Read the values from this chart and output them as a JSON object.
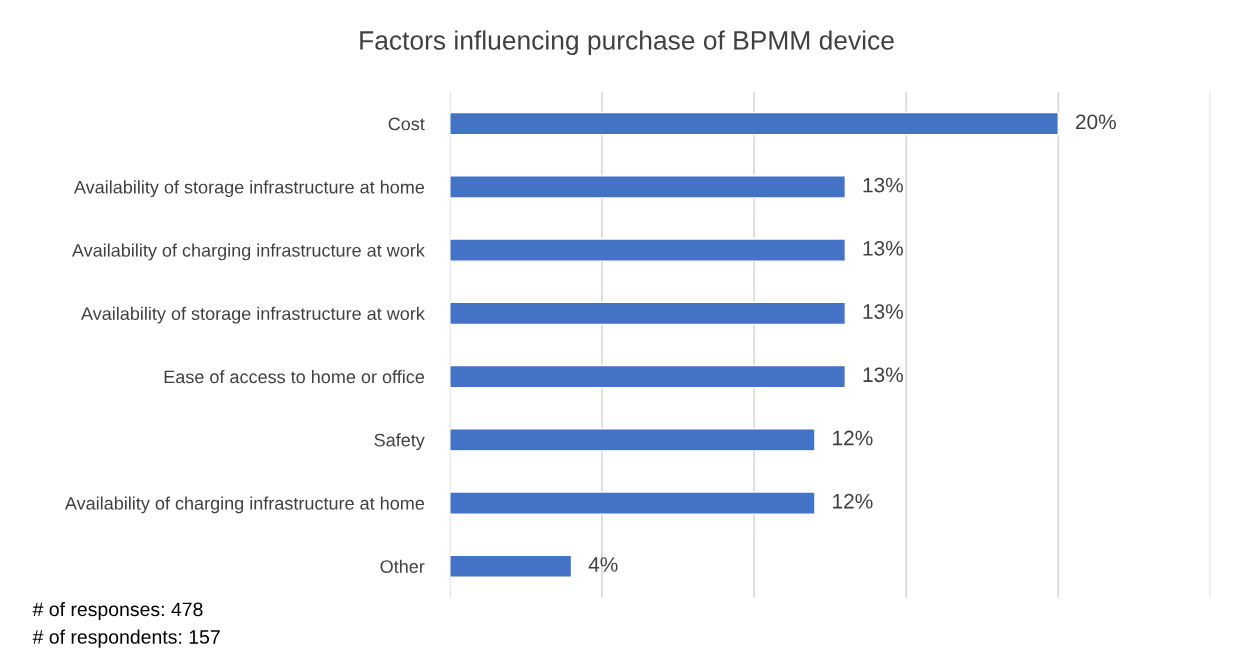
{
  "chart_data": {
    "type": "bar",
    "orientation": "horizontal",
    "title": "Factors influencing purchase of BPMM device",
    "categories": [
      "Cost",
      "Availability of storage infrastructure at home",
      "Availability of charging infrastructure at work",
      "Availability of storage infrastructure at work",
      "Ease of access to home or office",
      "Safety",
      "Availability of charging infrastructure at home",
      "Other"
    ],
    "values": [
      20,
      13,
      13,
      13,
      13,
      12,
      12,
      4
    ],
    "value_labels": [
      "20%",
      "13%",
      "13%",
      "13%",
      "13%",
      "12%",
      "12%",
      "4%"
    ],
    "color": "#4472c4",
    "xlim": [
      0,
      25
    ],
    "xticks": [
      {
        "value": 0,
        "label": null
      },
      {
        "value": 5,
        "label": null
      },
      {
        "value": 10,
        "label": null
      },
      {
        "value": 15,
        "label": null
      },
      {
        "value": 20,
        "label": null
      },
      {
        "value": 25,
        "label": null
      }
    ],
    "grid": "x",
    "tick_labels": "y",
    "annotations": [
      "# of responses: 478",
      "# of respondents: 157"
    ]
  }
}
